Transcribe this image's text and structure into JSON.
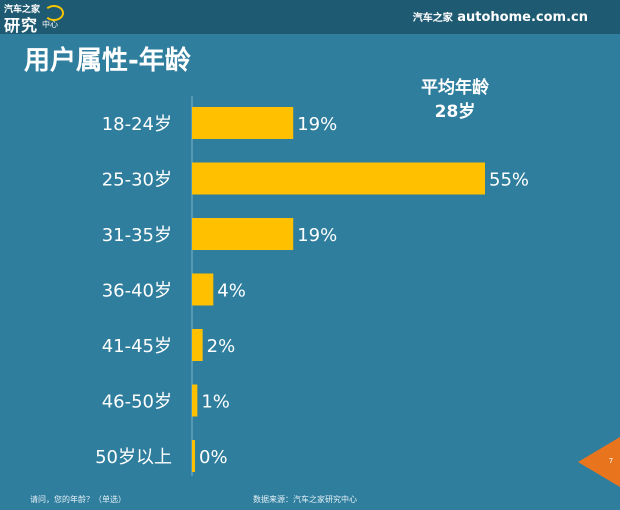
{
  "header": {
    "logo": {
      "line1": "汽车之家",
      "line2": "研究",
      "line3": "中心"
    },
    "brand_cn": "汽车之家",
    "brand_url": "autohome.com.cn"
  },
  "page_title": "用户属性-年龄",
  "average": {
    "label": "平均年龄",
    "value": "28岁"
  },
  "chart_data": {
    "type": "bar",
    "orientation": "horizontal",
    "categories": [
      "18-24岁",
      "25-30岁",
      "31-35岁",
      "36-40岁",
      "41-45岁",
      "46-50岁",
      "50岁以上"
    ],
    "values": [
      19,
      55,
      19,
      4,
      2,
      1,
      0
    ],
    "value_labels": [
      "19%",
      "55%",
      "19%",
      "4%",
      "2%",
      "1%",
      "0%"
    ],
    "unit": "%",
    "title": "",
    "xlabel": "",
    "ylabel": "",
    "xlim": [
      0,
      55
    ],
    "grid": false,
    "legend": "none",
    "bar_color": "#FFC000",
    "label_color": "#FFFFFF"
  },
  "footer": {
    "question": "请问，您的年龄？（单选）",
    "source": "数据来源：汽车之家研究中心"
  },
  "page_number": "7",
  "colors": {
    "background": "#2F7E9E",
    "header_bar": "#1F5A73",
    "accent_orange": "#E8741E",
    "bar": "#FFC000"
  }
}
